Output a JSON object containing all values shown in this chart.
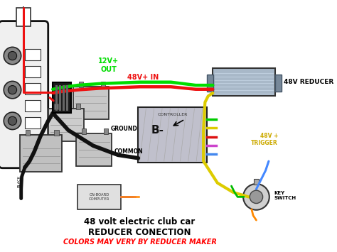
{
  "title1": "48 volt electric club car",
  "title2": "REDUCER CONECTION",
  "subtitle": "COLORS MAY VERY BY REDUCER MAKER",
  "title_color": "#000000",
  "subtitle_color": "#ff0000",
  "bg_color": "#ffffff",
  "label_12v": "12V+\nOUT",
  "label_48v_in": "48V+ IN",
  "label_48v_reducer": "48V REDUCER",
  "label_controller": "CONTROLLER",
  "label_b_minus": "B-",
  "label_ground": "GROUND",
  "label_common": "COMMON",
  "label_48v_trigger": "48V +\nTRIGGER",
  "label_key_switch": "KEY\nSWITCH",
  "label_onboard": "ON-BOARD\nCOMPUTER",
  "label_black": "BLACK",
  "wire_green_color": "#00dd00",
  "wire_red_color": "#ee1111",
  "wire_black_color": "#111111",
  "wire_yellow_color": "#ddcc00",
  "wire_blue_color": "#4488ff",
  "wire_green2_color": "#00bb00",
  "wire_orange_color": "#ff8800",
  "reducer_label_color": "#000000"
}
